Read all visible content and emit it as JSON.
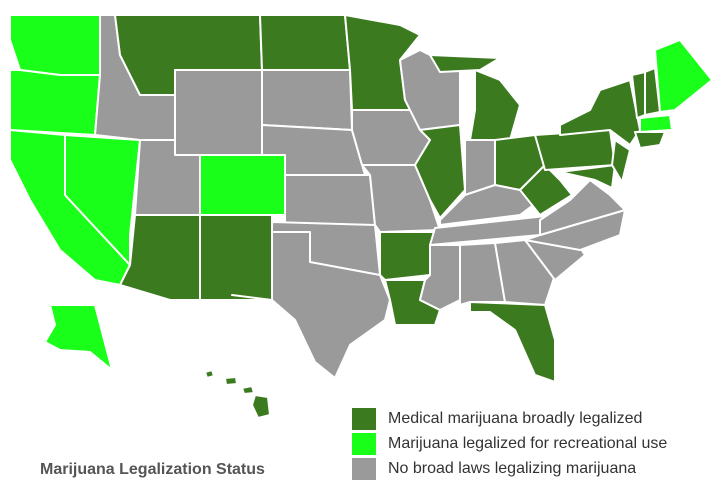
{
  "title": "Marijuana Legalization Status",
  "legend": [
    {
      "label": "Medical marijuana broadly legalized",
      "color": "#3b7a1e"
    },
    {
      "label": "Marijuana legalized for recreational use",
      "color": "#19ff19"
    },
    {
      "label": "No broad laws legalizing marijuana",
      "color": "#9a9a9a"
    }
  ]
}
